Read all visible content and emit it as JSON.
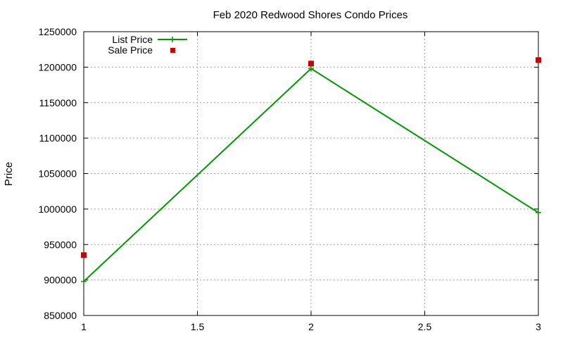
{
  "chart_data": {
    "type": "line",
    "title": "Feb 2020 Redwood Shores Condo Prices",
    "xlabel": "",
    "ylabel": "Price",
    "xlim": [
      1,
      3
    ],
    "ylim": [
      850000,
      1250000
    ],
    "x_ticks": [
      "1",
      "1.5",
      "2",
      "2.5",
      "3"
    ],
    "y_ticks": [
      "850000",
      "900000",
      "950000",
      "1000000",
      "1050000",
      "1100000",
      "1150000",
      "1200000",
      "1250000"
    ],
    "grid": true,
    "legend_position": "top-left",
    "series": [
      {
        "name": "List Price",
        "kind": "linespoints",
        "marker": "plus",
        "color": "#009900",
        "x": [
          1,
          2,
          3
        ],
        "y": [
          898000,
          1198000,
          995000
        ]
      },
      {
        "name": "Sale Price",
        "kind": "points",
        "marker": "square",
        "color": "#cc0000",
        "x": [
          1,
          2,
          3
        ],
        "y": [
          935000,
          1205000,
          1210000
        ]
      }
    ]
  }
}
